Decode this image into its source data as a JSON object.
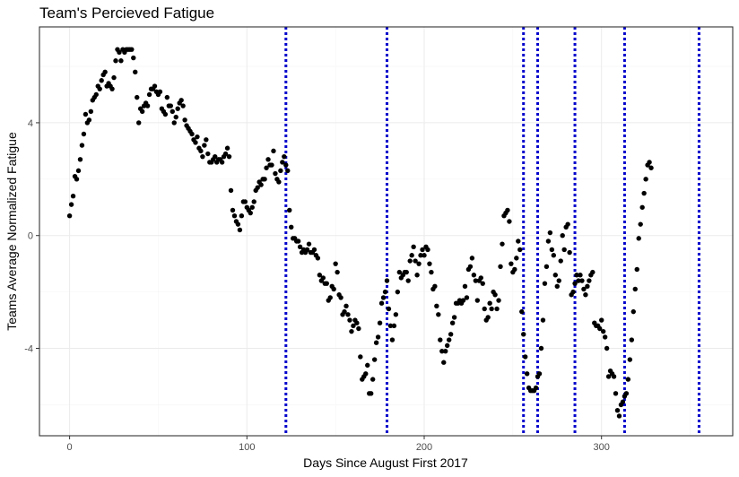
{
  "chart_data": {
    "type": "scatter",
    "title": "Team's Percieved Fatigue",
    "xlabel": "Days Since August First 2017",
    "ylabel": "Teams Average Normalized Fatigue",
    "xlim": [
      -17,
      374
    ],
    "ylim": [
      -7.1,
      7.4
    ],
    "x_ticks": [
      0,
      100,
      200,
      300
    ],
    "y_ticks": [
      -4,
      0,
      4
    ],
    "grid": true,
    "point_color": "#000000",
    "line_color": "#0000cc",
    "vertical_lines": [
      122,
      179,
      256,
      264,
      285,
      313,
      355
    ],
    "points": [
      [
        0,
        0.7
      ],
      [
        1,
        1.1
      ],
      [
        2,
        1.4
      ],
      [
        3,
        2.1
      ],
      [
        4,
        2.0
      ],
      [
        5,
        2.3
      ],
      [
        6,
        2.7
      ],
      [
        7,
        3.2
      ],
      [
        8,
        3.6
      ],
      [
        9,
        4.3
      ],
      [
        10,
        4.0
      ],
      [
        11,
        4.1
      ],
      [
        12,
        4.4
      ],
      [
        13,
        4.8
      ],
      [
        14,
        4.9
      ],
      [
        15,
        5.0
      ],
      [
        16,
        5.3
      ],
      [
        17,
        5.2
      ],
      [
        18,
        5.5
      ],
      [
        19,
        5.7
      ],
      [
        20,
        5.8
      ],
      [
        21,
        5.3
      ],
      [
        22,
        5.4
      ],
      [
        23,
        5.3
      ],
      [
        24,
        5.2
      ],
      [
        25,
        5.6
      ],
      [
        26,
        6.2
      ],
      [
        27,
        6.6
      ],
      [
        28,
        6.5
      ],
      [
        29,
        6.2
      ],
      [
        30,
        6.6
      ],
      [
        31,
        6.5
      ],
      [
        32,
        6.6
      ],
      [
        33,
        6.6
      ],
      [
        34,
        6.6
      ],
      [
        35,
        6.6
      ],
      [
        36,
        6.3
      ],
      [
        37,
        5.8
      ],
      [
        38,
        4.9
      ],
      [
        39,
        4.0
      ],
      [
        40,
        4.5
      ],
      [
        41,
        4.4
      ],
      [
        42,
        4.6
      ],
      [
        43,
        4.7
      ],
      [
        44,
        4.6
      ],
      [
        45,
        5.0
      ],
      [
        46,
        5.2
      ],
      [
        47,
        5.2
      ],
      [
        48,
        5.3
      ],
      [
        49,
        5.1
      ],
      [
        50,
        5.0
      ],
      [
        51,
        5.1
      ],
      [
        52,
        4.5
      ],
      [
        53,
        4.4
      ],
      [
        54,
        4.3
      ],
      [
        55,
        4.9
      ],
      [
        56,
        4.6
      ],
      [
        57,
        4.6
      ],
      [
        58,
        4.4
      ],
      [
        59,
        4.0
      ],
      [
        60,
        4.2
      ],
      [
        61,
        4.5
      ],
      [
        62,
        4.7
      ],
      [
        63,
        4.8
      ],
      [
        64,
        4.6
      ],
      [
        65,
        4.1
      ],
      [
        66,
        3.9
      ],
      [
        67,
        3.8
      ],
      [
        68,
        3.7
      ],
      [
        69,
        3.6
      ],
      [
        70,
        3.4
      ],
      [
        71,
        3.3
      ],
      [
        72,
        3.5
      ],
      [
        73,
        3.1
      ],
      [
        74,
        3.0
      ],
      [
        75,
        2.8
      ],
      [
        76,
        3.2
      ],
      [
        77,
        3.4
      ],
      [
        78,
        2.9
      ],
      [
        79,
        2.6
      ],
      [
        80,
        2.6
      ],
      [
        81,
        2.7
      ],
      [
        82,
        2.8
      ],
      [
        83,
        2.6
      ],
      [
        84,
        2.7
      ],
      [
        85,
        2.7
      ],
      [
        86,
        2.6
      ],
      [
        87,
        2.8
      ],
      [
        88,
        2.9
      ],
      [
        89,
        3.1
      ],
      [
        90,
        2.8
      ],
      [
        91,
        1.6
      ],
      [
        92,
        0.9
      ],
      [
        93,
        0.7
      ],
      [
        94,
        0.5
      ],
      [
        95,
        0.4
      ],
      [
        96,
        0.2
      ],
      [
        97,
        0.7
      ],
      [
        98,
        1.2
      ],
      [
        99,
        1.2
      ],
      [
        100,
        1.0
      ],
      [
        101,
        0.9
      ],
      [
        102,
        0.8
      ],
      [
        103,
        1.0
      ],
      [
        104,
        1.2
      ],
      [
        105,
        1.6
      ],
      [
        106,
        1.7
      ],
      [
        107,
        1.9
      ],
      [
        108,
        1.8
      ],
      [
        109,
        2.0
      ],
      [
        110,
        2.0
      ],
      [
        111,
        2.4
      ],
      [
        112,
        2.7
      ],
      [
        113,
        2.5
      ],
      [
        114,
        2.5
      ],
      [
        115,
        3.0
      ],
      [
        116,
        2.2
      ],
      [
        117,
        2.0
      ],
      [
        118,
        1.9
      ],
      [
        119,
        2.3
      ],
      [
        120,
        2.6
      ],
      [
        121,
        2.8
      ],
      [
        122,
        2.5
      ],
      [
        123,
        2.3
      ],
      [
        124,
        0.9
      ],
      [
        125,
        0.3
      ],
      [
        126,
        -0.1
      ],
      [
        127,
        -0.1
      ],
      [
        128,
        -0.2
      ],
      [
        129,
        -0.2
      ],
      [
        130,
        -0.4
      ],
      [
        131,
        -0.6
      ],
      [
        132,
        -0.5
      ],
      [
        133,
        -0.6
      ],
      [
        134,
        -0.5
      ],
      [
        135,
        -0.3
      ],
      [
        136,
        -0.6
      ],
      [
        137,
        -0.6
      ],
      [
        138,
        -0.5
      ],
      [
        139,
        -0.7
      ],
      [
        140,
        -0.8
      ],
      [
        141,
        -1.4
      ],
      [
        142,
        -1.6
      ],
      [
        143,
        -1.5
      ],
      [
        144,
        -1.7
      ],
      [
        145,
        -1.7
      ],
      [
        146,
        -2.3
      ],
      [
        147,
        -2.2
      ],
      [
        148,
        -1.8
      ],
      [
        149,
        -1.9
      ],
      [
        150,
        -1.0
      ],
      [
        151,
        -1.3
      ],
      [
        152,
        -2.1
      ],
      [
        153,
        -2.2
      ],
      [
        154,
        -2.8
      ],
      [
        155,
        -2.7
      ],
      [
        156,
        -2.5
      ],
      [
        157,
        -2.8
      ],
      [
        158,
        -3.0
      ],
      [
        159,
        -3.4
      ],
      [
        160,
        -3.2
      ],
      [
        161,
        -3.0
      ],
      [
        162,
        -3.1
      ],
      [
        163,
        -3.3
      ],
      [
        164,
        -4.3
      ],
      [
        165,
        -5.1
      ],
      [
        166,
        -5.0
      ],
      [
        167,
        -4.9
      ],
      [
        168,
        -4.6
      ],
      [
        169,
        -5.6
      ],
      [
        170,
        -5.6
      ],
      [
        171,
        -5.1
      ],
      [
        172,
        -4.4
      ],
      [
        173,
        -3.8
      ],
      [
        174,
        -3.6
      ],
      [
        175,
        -3.1
      ],
      [
        176,
        -2.4
      ],
      [
        177,
        -2.2
      ],
      [
        178,
        -2.0
      ],
      [
        179,
        -1.6
      ],
      [
        180,
        -2.6
      ],
      [
        181,
        -3.2
      ],
      [
        182,
        -3.7
      ],
      [
        183,
        -3.2
      ],
      [
        184,
        -2.8
      ],
      [
        185,
        -2.0
      ],
      [
        186,
        -1.3
      ],
      [
        187,
        -1.5
      ],
      [
        188,
        -1.4
      ],
      [
        189,
        -1.3
      ],
      [
        190,
        -1.3
      ],
      [
        191,
        -1.6
      ],
      [
        192,
        -0.9
      ],
      [
        193,
        -0.7
      ],
      [
        194,
        -0.4
      ],
      [
        195,
        -0.9
      ],
      [
        196,
        -1.4
      ],
      [
        197,
        -1.0
      ],
      [
        198,
        -0.7
      ],
      [
        199,
        -0.5
      ],
      [
        200,
        -0.7
      ],
      [
        201,
        -0.4
      ],
      [
        202,
        -0.5
      ],
      [
        203,
        -1.0
      ],
      [
        204,
        -1.3
      ],
      [
        205,
        -1.9
      ],
      [
        206,
        -1.8
      ],
      [
        207,
        -2.5
      ],
      [
        208,
        -2.8
      ],
      [
        209,
        -3.7
      ],
      [
        210,
        -4.1
      ],
      [
        211,
        -4.5
      ],
      [
        212,
        -4.1
      ],
      [
        213,
        -3.9
      ],
      [
        214,
        -3.7
      ],
      [
        215,
        -3.5
      ],
      [
        216,
        -3.1
      ],
      [
        217,
        -2.9
      ],
      [
        218,
        -2.4
      ],
      [
        219,
        -2.4
      ],
      [
        220,
        -2.3
      ],
      [
        221,
        -2.4
      ],
      [
        222,
        -2.3
      ],
      [
        223,
        -1.8
      ],
      [
        224,
        -2.2
      ],
      [
        225,
        -1.2
      ],
      [
        226,
        -1.1
      ],
      [
        227,
        -0.8
      ],
      [
        228,
        -1.4
      ],
      [
        229,
        -1.6
      ],
      [
        230,
        -2.3
      ],
      [
        231,
        -1.6
      ],
      [
        232,
        -1.5
      ],
      [
        233,
        -1.7
      ],
      [
        234,
        -2.6
      ],
      [
        235,
        -3.0
      ],
      [
        236,
        -2.9
      ],
      [
        237,
        -2.4
      ],
      [
        238,
        -2.6
      ],
      [
        239,
        -2.0
      ],
      [
        240,
        -2.1
      ],
      [
        241,
        -2.6
      ],
      [
        242,
        -2.3
      ],
      [
        243,
        -1.1
      ],
      [
        244,
        -0.3
      ],
      [
        245,
        0.7
      ],
      [
        246,
        0.8
      ],
      [
        247,
        0.9
      ],
      [
        248,
        0.5
      ],
      [
        249,
        -1.0
      ],
      [
        250,
        -1.3
      ],
      [
        251,
        -1.2
      ],
      [
        252,
        -0.8
      ],
      [
        253,
        -0.2
      ],
      [
        254,
        -0.5
      ],
      [
        255,
        -2.7
      ],
      [
        256,
        -3.5
      ],
      [
        257,
        -4.3
      ],
      [
        258,
        -4.9
      ],
      [
        259,
        -5.4
      ],
      [
        260,
        -5.5
      ],
      [
        261,
        -5.5
      ],
      [
        262,
        -5.5
      ],
      [
        263,
        -5.4
      ],
      [
        264,
        -5.0
      ],
      [
        265,
        -4.9
      ],
      [
        266,
        -4.0
      ],
      [
        267,
        -3.0
      ],
      [
        268,
        -1.7
      ],
      [
        269,
        -1.1
      ],
      [
        270,
        -0.2
      ],
      [
        271,
        0.1
      ],
      [
        272,
        -0.5
      ],
      [
        273,
        -0.7
      ],
      [
        274,
        -1.4
      ],
      [
        275,
        -1.8
      ],
      [
        276,
        -1.6
      ],
      [
        277,
        -0.9
      ],
      [
        278,
        0.0
      ],
      [
        279,
        -0.5
      ],
      [
        280,
        0.3
      ],
      [
        281,
        0.4
      ],
      [
        282,
        -0.6
      ],
      [
        283,
        -2.1
      ],
      [
        284,
        -2.0
      ],
      [
        285,
        -1.7
      ],
      [
        286,
        -1.4
      ],
      [
        287,
        -1.6
      ],
      [
        288,
        -1.4
      ],
      [
        289,
        -1.6
      ],
      [
        290,
        -1.9
      ],
      [
        291,
        -2.1
      ],
      [
        292,
        -1.8
      ],
      [
        293,
        -1.6
      ],
      [
        294,
        -1.4
      ],
      [
        295,
        -1.3
      ],
      [
        296,
        -3.1
      ],
      [
        297,
        -3.2
      ],
      [
        298,
        -3.2
      ],
      [
        299,
        -3.3
      ],
      [
        300,
        -3.0
      ],
      [
        301,
        -3.4
      ],
      [
        302,
        -3.6
      ],
      [
        303,
        -4.0
      ],
      [
        304,
        -5.0
      ],
      [
        305,
        -4.8
      ],
      [
        306,
        -4.9
      ],
      [
        307,
        -5.0
      ],
      [
        308,
        -5.6
      ],
      [
        309,
        -6.2
      ],
      [
        310,
        -6.4
      ],
      [
        311,
        -6.0
      ],
      [
        312,
        -5.9
      ],
      [
        313,
        -5.7
      ],
      [
        314,
        -5.6
      ],
      [
        315,
        -5.1
      ],
      [
        316,
        -4.4
      ],
      [
        317,
        -3.7
      ],
      [
        318,
        -2.7
      ],
      [
        319,
        -1.9
      ],
      [
        320,
        -1.2
      ],
      [
        321,
        -0.1
      ],
      [
        322,
        0.4
      ],
      [
        323,
        1.0
      ],
      [
        324,
        1.5
      ],
      [
        325,
        2.0
      ],
      [
        326,
        2.5
      ],
      [
        327,
        2.6
      ],
      [
        328,
        2.4
      ]
    ]
  }
}
